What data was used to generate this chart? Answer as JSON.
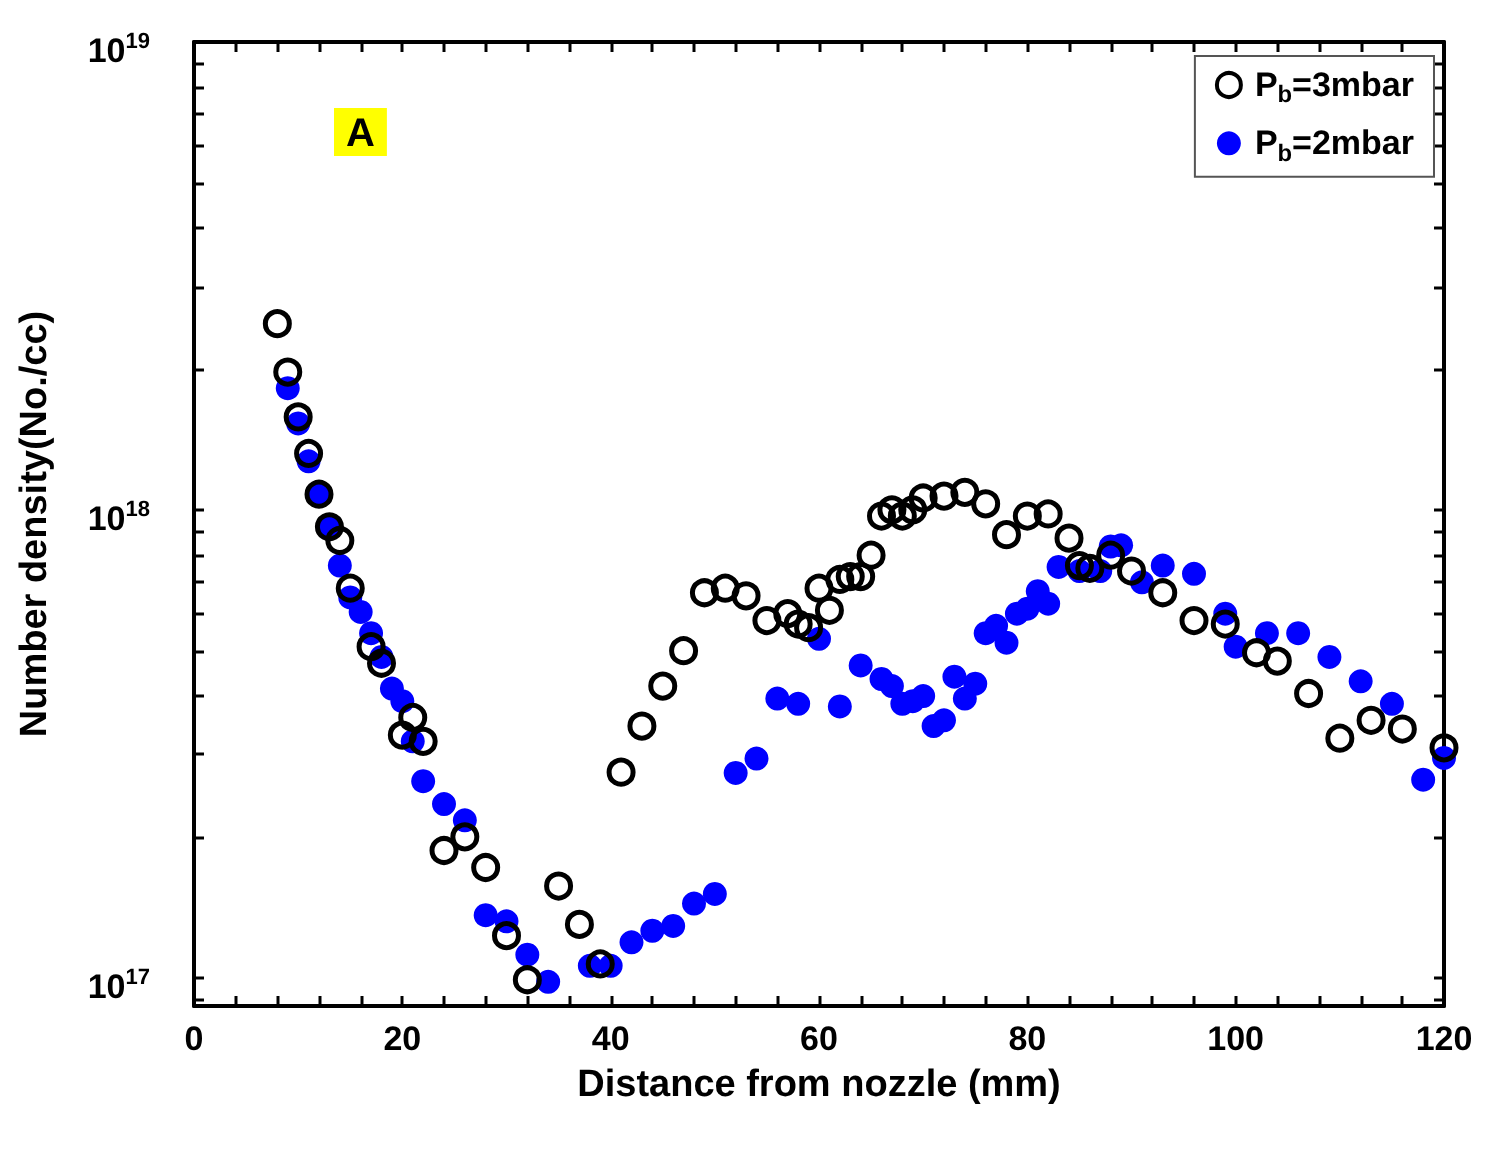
{
  "chart_data": {
    "type": "scatter",
    "xlabel": "Distance from nozzle (mm)",
    "ylabel": "Number density(No./cc)",
    "annotations": [
      "A"
    ],
    "log": "y",
    "marker": "circle",
    "legend": "top right",
    "grid": false,
    "xlim": [
      0,
      120
    ],
    "xticks": [
      0,
      {
        "value": 4,
        "label": null
      },
      {
        "value": 8,
        "label": null
      },
      {
        "value": 12,
        "label": null
      },
      {
        "value": 16,
        "label": null
      },
      20,
      {
        "value": 24,
        "label": null
      },
      {
        "value": 28,
        "label": null
      },
      {
        "value": 32,
        "label": null
      },
      {
        "value": 36,
        "label": null
      },
      40,
      {
        "value": 44,
        "label": null
      },
      {
        "value": 48,
        "label": null
      },
      {
        "value": 52,
        "label": null
      },
      {
        "value": 56,
        "label": null
      },
      60,
      {
        "value": 64,
        "label": null
      },
      {
        "value": 68,
        "label": null
      },
      {
        "value": 72,
        "label": null
      },
      {
        "value": 76,
        "label": null
      },
      80,
      {
        "value": 84,
        "label": null
      },
      {
        "value": 88,
        "label": null
      },
      {
        "value": 92,
        "label": null
      },
      {
        "value": 96,
        "label": null
      },
      100,
      {
        "value": 104,
        "label": null
      },
      {
        "value": 108,
        "label": null
      },
      {
        "value": 112,
        "label": null
      },
      {
        "value": 116,
        "label": null
      },
      120
    ],
    "ylim": [
      8.7e+16,
      1e+19
    ],
    "yticks": [
      {
        "value": 9e+16,
        "label": null
      },
      {
        "value": 1e+17,
        "label": "10$^{17}$"
      },
      {
        "value": 2e+17,
        "label": null
      },
      {
        "value": 3e+17,
        "label": null
      },
      {
        "value": 4e+17,
        "label": null
      },
      {
        "value": 5e+17,
        "label": null
      },
      {
        "value": 6e+17,
        "label": null
      },
      {
        "value": 7e+17,
        "label": null
      },
      {
        "value": 8e+17,
        "label": null
      },
      {
        "value": 9e+17,
        "label": null
      },
      {
        "value": 1e+18,
        "label": "10$^{18}$"
      },
      {
        "value": 2e+18,
        "label": null
      },
      {
        "value": 3e+18,
        "label": null
      },
      {
        "value": 4e+18,
        "label": null
      },
      {
        "value": 5e+18,
        "label": null
      },
      {
        "value": 6e+18,
        "label": null
      },
      {
        "value": 7e+18,
        "label": null
      },
      {
        "value": 8e+18,
        "label": null
      },
      {
        "value": 9e+18,
        "label": null
      },
      {
        "value": 1e+19,
        "label": "10$^{19}$"
      }
    ],
    "series": [
      {
        "name": "P$_{b}$=3mbar",
        "color": "#000000",
        "x": [
          8,
          9,
          10,
          11,
          12,
          13,
          14,
          15,
          17,
          18,
          20,
          21,
          22,
          24,
          26,
          28,
          30,
          32,
          35,
          37,
          39,
          41,
          43,
          45,
          47,
          49,
          51,
          53,
          55,
          57,
          58,
          59,
          60,
          61,
          62,
          63,
          64,
          65,
          66,
          67,
          68,
          69,
          70,
          72,
          74,
          76,
          78,
          80,
          82,
          84,
          85,
          86,
          88,
          90,
          93,
          96,
          99,
          102,
          104,
          107,
          110,
          113,
          116,
          120
        ],
        "values": [
          2.5e+18,
          1.97e+18,
          1.58e+18,
          1.32e+18,
          1.08e+18,
          9.2e+17,
          8.6e+17,
          6.8e+17,
          5.1e+17,
          4.7e+17,
          3.3e+17,
          3.6e+17,
          3.2e+17,
          1.87e+17,
          2e+17,
          1.72e+17,
          1.23e+17,
          9.9e+16,
          1.57e+17,
          1.3e+17,
          1.07e+17,
          2.75e+17,
          3.45e+17,
          4.2e+17,
          5e+17,
          6.65e+17,
          6.8e+17,
          6.55e+17,
          5.8e+17,
          6e+17,
          5.7e+17,
          5.6e+17,
          6.8e+17,
          6.1e+17,
          7.1e+17,
          7.2e+17,
          7.2e+17,
          8e+17,
          9.7e+17,
          1e+18,
          9.7e+17,
          1e+18,
          1.06e+18,
          1.07e+18,
          1.09e+18,
          1.03e+18,
          8.85e+17,
          9.7e+17,
          9.8e+17,
          8.7e+17,
          7.6e+17,
          7.5e+17,
          8e+17,
          7.4e+17,
          6.65e+17,
          5.8e+17,
          5.7e+17,
          4.95e+17,
          4.75e+17,
          4.05e+17,
          3.25e+17,
          3.55e+17,
          3.4e+17,
          3.1e+17
        ]
      },
      {
        "name": "P$_{b}$=2mbar",
        "color": "#0000ff",
        "x": [
          9,
          10,
          11,
          12,
          13,
          14,
          15,
          16,
          17,
          18,
          19,
          20,
          21,
          22,
          24,
          26,
          28,
          30,
          32,
          34,
          38,
          40,
          42,
          44,
          46,
          48,
          50,
          52,
          54,
          56,
          58,
          60,
          62,
          64,
          66,
          67,
          68,
          69,
          70,
          71,
          72,
          73,
          74,
          75,
          76,
          77,
          78,
          79,
          80,
          81,
          82,
          83,
          85,
          87,
          88,
          89,
          91,
          93,
          96,
          99,
          100,
          103,
          106,
          109,
          112,
          115,
          118,
          120
        ],
        "values": [
          1.82e+18,
          1.53e+18,
          1.27e+18,
          1.08e+18,
          9.2e+17,
          7.6e+17,
          6.5e+17,
          6.05e+17,
          5.45e+17,
          4.85e+17,
          4.15e+17,
          3.9e+17,
          3.2e+17,
          2.63e+17,
          2.35e+17,
          2.17e+17,
          1.36e+17,
          1.32e+17,
          1.12e+17,
          9.8e+16,
          1.06e+17,
          1.06e+17,
          1.19e+17,
          1.26e+17,
          1.29e+17,
          1.44e+17,
          1.51e+17,
          2.74e+17,
          2.94e+17,
          3.95e+17,
          3.85e+17,
          5.3e+17,
          3.8e+17,
          4.65e+17,
          4.35e+17,
          4.2e+17,
          3.85e+17,
          3.9e+17,
          4e+17,
          3.45e+17,
          3.55e+17,
          4.4e+17,
          3.95e+17,
          4.25e+17,
          5.45e+17,
          5.65e+17,
          5.2e+17,
          6e+17,
          6.15e+17,
          6.7e+17,
          6.3e+17,
          7.55e+17,
          7.4e+17,
          7.4e+17,
          8.35e+17,
          8.4e+17,
          7e+17,
          7.6e+17,
          7.3e+17,
          6e+17,
          5.1e+17,
          5.45e+17,
          5.45e+17,
          4.85e+17,
          4.3e+17,
          3.85e+17,
          2.65e+17,
          2.95e+17
        ]
      }
    ]
  }
}
